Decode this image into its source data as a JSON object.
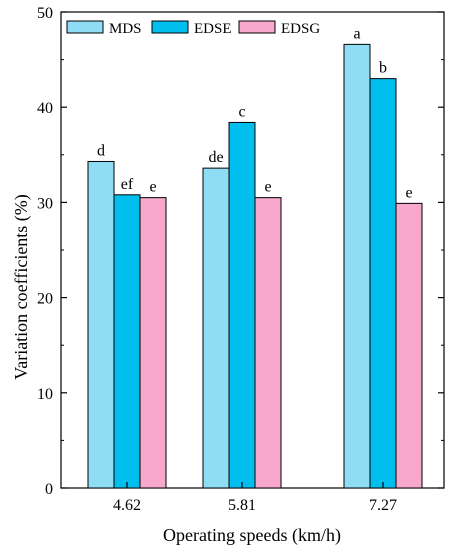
{
  "chart_data": {
    "type": "bar",
    "title": "",
    "xlabel": "Operating speeds (km/h)",
    "ylabel": "Variation coefficients (%)",
    "ylim": [
      0,
      50
    ],
    "yticks": [
      "0",
      "10",
      "20",
      "30",
      "40",
      "50"
    ],
    "categories": [
      "4.62",
      "5.81",
      "7.27"
    ],
    "series": [
      {
        "name": "MDS",
        "color": "#8FDDF5",
        "values": [
          34.3,
          33.6,
          46.6
        ],
        "labels": [
          "d",
          "de",
          "a"
        ]
      },
      {
        "name": "EDSE",
        "color": "#00BFEF",
        "values": [
          30.8,
          38.4,
          43.0
        ],
        "labels": [
          "ef",
          "c",
          "b"
        ]
      },
      {
        "name": "EDSG",
        "color": "#F7A8CC",
        "values": [
          30.5,
          30.5,
          29.9
        ],
        "labels": [
          "e",
          "e",
          "e"
        ]
      }
    ],
    "legend_position": "top-left",
    "grid": false
  }
}
